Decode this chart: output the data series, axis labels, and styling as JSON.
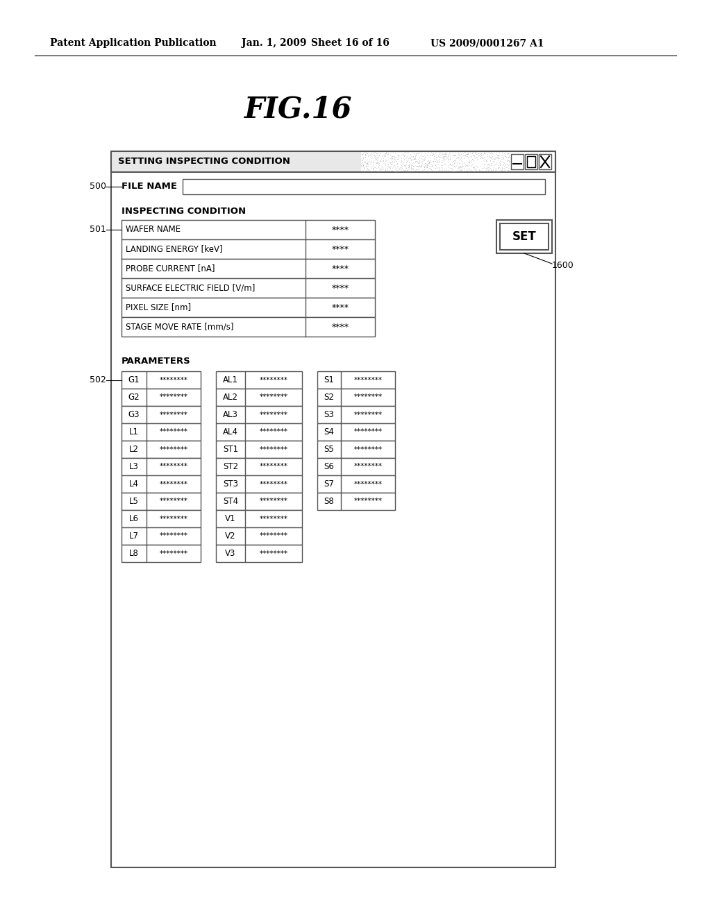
{
  "bg_color": "#ffffff",
  "header_text": "Patent Application Publication",
  "header_date": "Jan. 1, 2009",
  "header_sheet": "Sheet 16 of 16",
  "header_patent": "US 2009/0001267 A1",
  "fig_title": "FIG.16",
  "window_title": "SETTING INSPECTING CONDITION",
  "file_name_label": "FILE NAME",
  "inspecting_condition_label": "INSPECTING CONDITION",
  "label_500": "500",
  "label_501": "501",
  "label_502": "502",
  "label_1600": "1600",
  "set_button": "SET",
  "condition_rows": [
    [
      "WAFER NAME",
      "****"
    ],
    [
      "LANDING ENERGY [keV]",
      "****"
    ],
    [
      "PROBE CURRENT [nA]",
      "****"
    ],
    [
      "SURFACE ELECTRIC FIELD [V/m]",
      "****"
    ],
    [
      "PIXEL SIZE [nm]",
      "****"
    ],
    [
      "STAGE MOVE RATE [mm/s]",
      "****"
    ]
  ],
  "parameters_label": "PARAMETERS",
  "param_col1": [
    [
      "G1",
      "********"
    ],
    [
      "G2",
      "********"
    ],
    [
      "G3",
      "********"
    ],
    [
      "L1",
      "********"
    ],
    [
      "L2",
      "********"
    ],
    [
      "L3",
      "********"
    ],
    [
      "L4",
      "********"
    ],
    [
      "L5",
      "********"
    ],
    [
      "L6",
      "********"
    ],
    [
      "L7",
      "********"
    ],
    [
      "L8",
      "********"
    ]
  ],
  "param_col2": [
    [
      "AL1",
      "********"
    ],
    [
      "AL2",
      "********"
    ],
    [
      "AL3",
      "********"
    ],
    [
      "AL4",
      "********"
    ],
    [
      "ST1",
      "********"
    ],
    [
      "ST2",
      "********"
    ],
    [
      "ST3",
      "********"
    ],
    [
      "ST4",
      "********"
    ],
    [
      "V1",
      "********"
    ],
    [
      "V2",
      "********"
    ],
    [
      "V3",
      "********"
    ]
  ],
  "param_col3": [
    [
      "S1",
      "********"
    ],
    [
      "S2",
      "********"
    ],
    [
      "S3",
      "********"
    ],
    [
      "S4",
      "********"
    ],
    [
      "S5",
      "********"
    ],
    [
      "S6",
      "********"
    ],
    [
      "S7",
      "********"
    ],
    [
      "S8",
      "********"
    ]
  ]
}
